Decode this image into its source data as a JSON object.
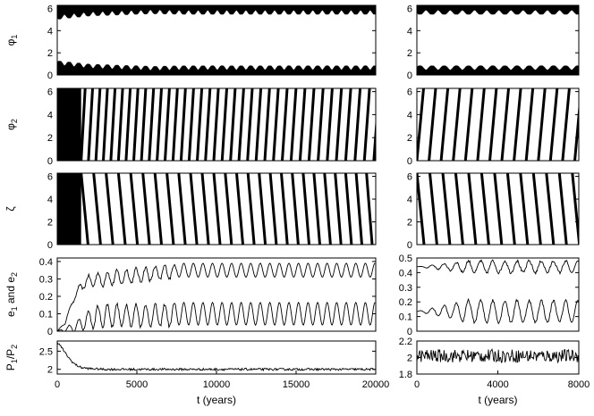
{
  "chart_data": [
    {
      "id": "phi1_left",
      "type": "scatter",
      "ylabel": "φ",
      "ylabel_sub": "1",
      "xlim": [
        0,
        20000
      ],
      "ylim": [
        0,
        6.28
      ],
      "yticks": [
        0,
        2,
        4,
        6
      ],
      "series": [
        {
          "style": "band",
          "x": [
            0,
            2000,
            4000,
            6000,
            8000,
            10000,
            12000,
            14000,
            16000,
            18000,
            20000
          ],
          "low": [
            0.9,
            0.6,
            0.5,
            0.4,
            0.45,
            0.45,
            0.45,
            0.45,
            0.45,
            0.45,
            0.45
          ],
          "high": [
            5.4,
            5.7,
            5.8,
            5.9,
            5.85,
            5.85,
            5.85,
            5.85,
            5.85,
            5.85,
            5.85
          ],
          "oscillation_period": 600,
          "oscillation_amplitude": 0.4
        }
      ]
    },
    {
      "id": "phi1_right",
      "type": "scatter",
      "xlim": [
        0,
        8000
      ],
      "ylim": [
        0,
        6.28
      ],
      "yticks": [
        0,
        2,
        4,
        6
      ],
      "series": [
        {
          "style": "band",
          "x": [
            0,
            8000
          ],
          "low": [
            0.45,
            0.45
          ],
          "high": [
            5.85,
            5.85
          ],
          "oscillation_period": 600,
          "oscillation_amplitude": 0.4
        }
      ]
    },
    {
      "id": "phi2_left",
      "type": "scatter",
      "ylabel": "φ",
      "ylabel_sub": "2",
      "xlim": [
        0,
        20000
      ],
      "ylim": [
        0,
        6.28
      ],
      "yticks": [
        0,
        2,
        4,
        6
      ],
      "series": [
        {
          "style": "sawtooth",
          "x_start": 0,
          "x_end": 20000,
          "chaotic_until": 1500,
          "period_early": 450,
          "period_late": 600,
          "direction": "up"
        }
      ]
    },
    {
      "id": "phi2_right",
      "type": "scatter",
      "xlim": [
        0,
        8000
      ],
      "ylim": [
        0,
        6.28
      ],
      "yticks": [
        0,
        2,
        4,
        6
      ],
      "series": [
        {
          "style": "sawtooth",
          "x_start": 0,
          "x_end": 8000,
          "chaotic_until": 0,
          "period_early": 600,
          "period_late": 600,
          "direction": "up"
        }
      ]
    },
    {
      "id": "zeta_left",
      "type": "scatter",
      "ylabel": "ζ",
      "xlim": [
        0,
        20000
      ],
      "ylim": [
        0,
        6.28
      ],
      "yticks": [
        0,
        2,
        4,
        6
      ],
      "series": [
        {
          "style": "sawtooth",
          "x_start": 0,
          "x_end": 20000,
          "chaotic_until": 1500,
          "period_early": 800,
          "period_late": 640,
          "direction": "down"
        }
      ]
    },
    {
      "id": "zeta_right",
      "type": "scatter",
      "xlim": [
        0,
        8000
      ],
      "ylim": [
        0,
        6.28
      ],
      "yticks": [
        0,
        2,
        4,
        6
      ],
      "series": [
        {
          "style": "sawtooth",
          "x_start": 0,
          "x_end": 8000,
          "chaotic_until": 0,
          "period_early": 640,
          "period_late": 640,
          "direction": "down"
        }
      ]
    },
    {
      "id": "ecc_left",
      "type": "line",
      "ylabel": "e",
      "ylabel_sub": "1",
      "ylabel_mid": " and e",
      "ylabel_sub2": "2",
      "xlim": [
        0,
        20000
      ],
      "ylim": [
        0,
        0.42
      ],
      "yticks": [
        0,
        0.1,
        0.2,
        0.3,
        0.4
      ],
      "series": [
        {
          "x": [
            0,
            500,
            1000,
            1500,
            2000,
            3000,
            4000,
            5000,
            6000,
            7000,
            7500,
            10000,
            15000,
            20000
          ],
          "y": [
            0,
            0.05,
            0.18,
            0.26,
            0.29,
            0.3,
            0.31,
            0.32,
            0.33,
            0.34,
            0.35,
            0.35,
            0.35,
            0.35
          ],
          "oscillation_period": 600,
          "oscillation_amplitude": 0.04
        },
        {
          "x": [
            0,
            500,
            1000,
            1500,
            2000,
            3000,
            4000,
            5000,
            6000,
            7000,
            7500,
            10000,
            15000,
            20000
          ],
          "y": [
            0,
            0.01,
            0.02,
            0.04,
            0.07,
            0.09,
            0.09,
            0.09,
            0.09,
            0.09,
            0.1,
            0.1,
            0.1,
            0.1
          ],
          "oscillation_period": 600,
          "oscillation_amplitude": 0.065
        }
      ]
    },
    {
      "id": "ecc_right",
      "type": "line",
      "xlim": [
        0,
        8000
      ],
      "ylim": [
        0,
        0.5
      ],
      "yticks": [
        0,
        0.1,
        0.2,
        0.3,
        0.4,
        0.5
      ],
      "series": [
        {
          "x": [
            0,
            8000
          ],
          "y": [
            0.44,
            0.44
          ],
          "oscillation_period": 600,
          "oscillation_amplitude": 0.04
        },
        {
          "x": [
            0,
            8000
          ],
          "y": [
            0.135,
            0.135
          ],
          "oscillation_period": 600,
          "oscillation_amplitude": 0.075
        }
      ]
    },
    {
      "id": "period_left",
      "type": "line",
      "ylabel": "P",
      "ylabel_sub": "1",
      "ylabel_mid": "/P",
      "ylabel_sub2": "2",
      "xlabel": "t (years)",
      "xlim": [
        0,
        20000
      ],
      "ylim": [
        1.87,
        2.78
      ],
      "yticks": [
        2,
        2.5
      ],
      "xticks": [
        0,
        5000,
        10000,
        15000,
        20000
      ],
      "series": [
        {
          "x": [
            0,
            250,
            500,
            750,
            1000,
            1250,
            1500,
            2000,
            3000,
            20000
          ],
          "y": [
            2.75,
            2.62,
            2.45,
            2.3,
            2.18,
            2.1,
            2.05,
            2.02,
            2.0,
            2.0
          ],
          "noise_amplitude": 0.03
        }
      ]
    },
    {
      "id": "period_right",
      "type": "line",
      "xlabel": "t (years)",
      "xlim": [
        0,
        8000
      ],
      "ylim": [
        1.8,
        2.2
      ],
      "yticks": [
        1.8,
        2,
        2.2
      ],
      "xticks": [
        0,
        4000,
        8000
      ],
      "series": [
        {
          "x": [
            0,
            8000
          ],
          "y": [
            2.02,
            2.02
          ],
          "noise_amplitude": 0.08
        }
      ]
    }
  ]
}
